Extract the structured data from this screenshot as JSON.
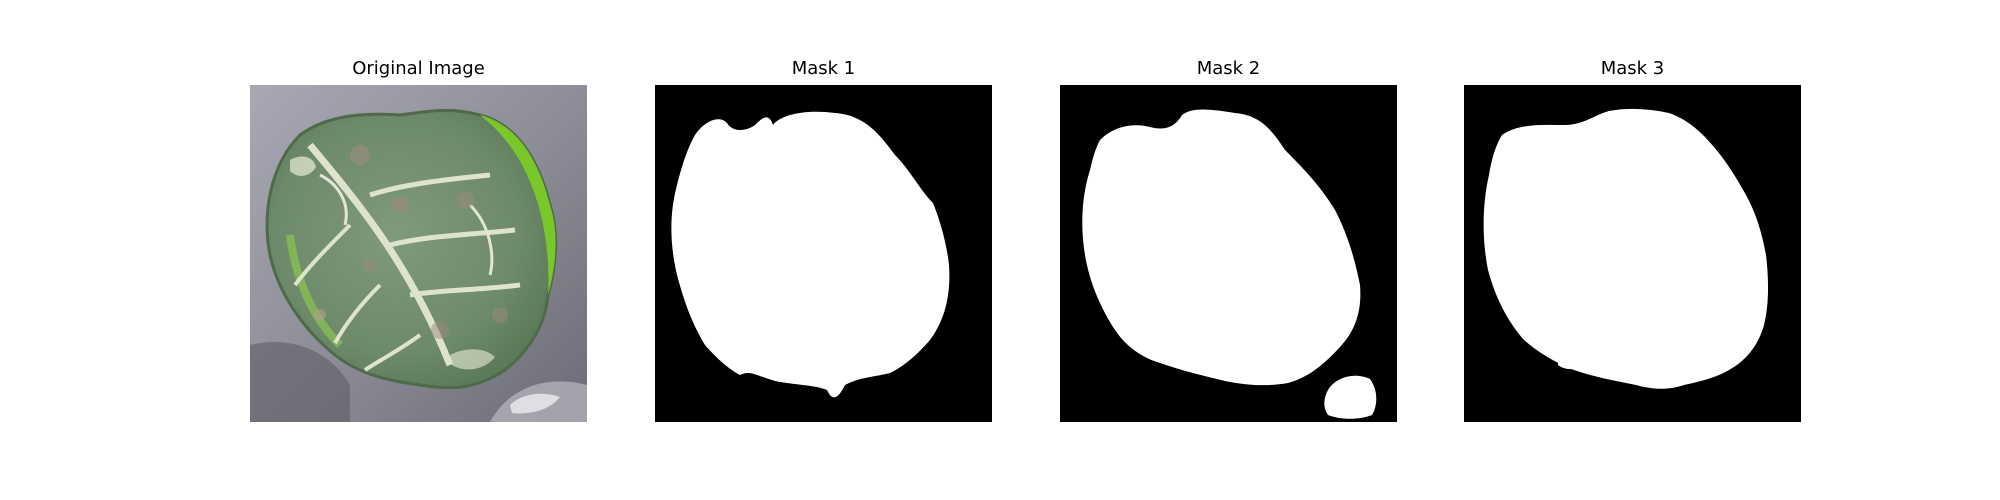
{
  "figure": {
    "panels": [
      {
        "title": "Original Image",
        "kind": "photo",
        "subject": "leaf"
      },
      {
        "title": "Mask 1",
        "kind": "mask"
      },
      {
        "title": "Mask 2",
        "kind": "mask"
      },
      {
        "title": "Mask 3",
        "kind": "mask"
      }
    ]
  },
  "colors": {
    "mask_foreground": "#ffffff",
    "mask_background": "#000000",
    "leaf_green": "#6f8f6f",
    "leaf_vein": "#d9e0cc",
    "leaf_edge_green": "#7ed321",
    "surface_gray": "#9a9aa4"
  }
}
